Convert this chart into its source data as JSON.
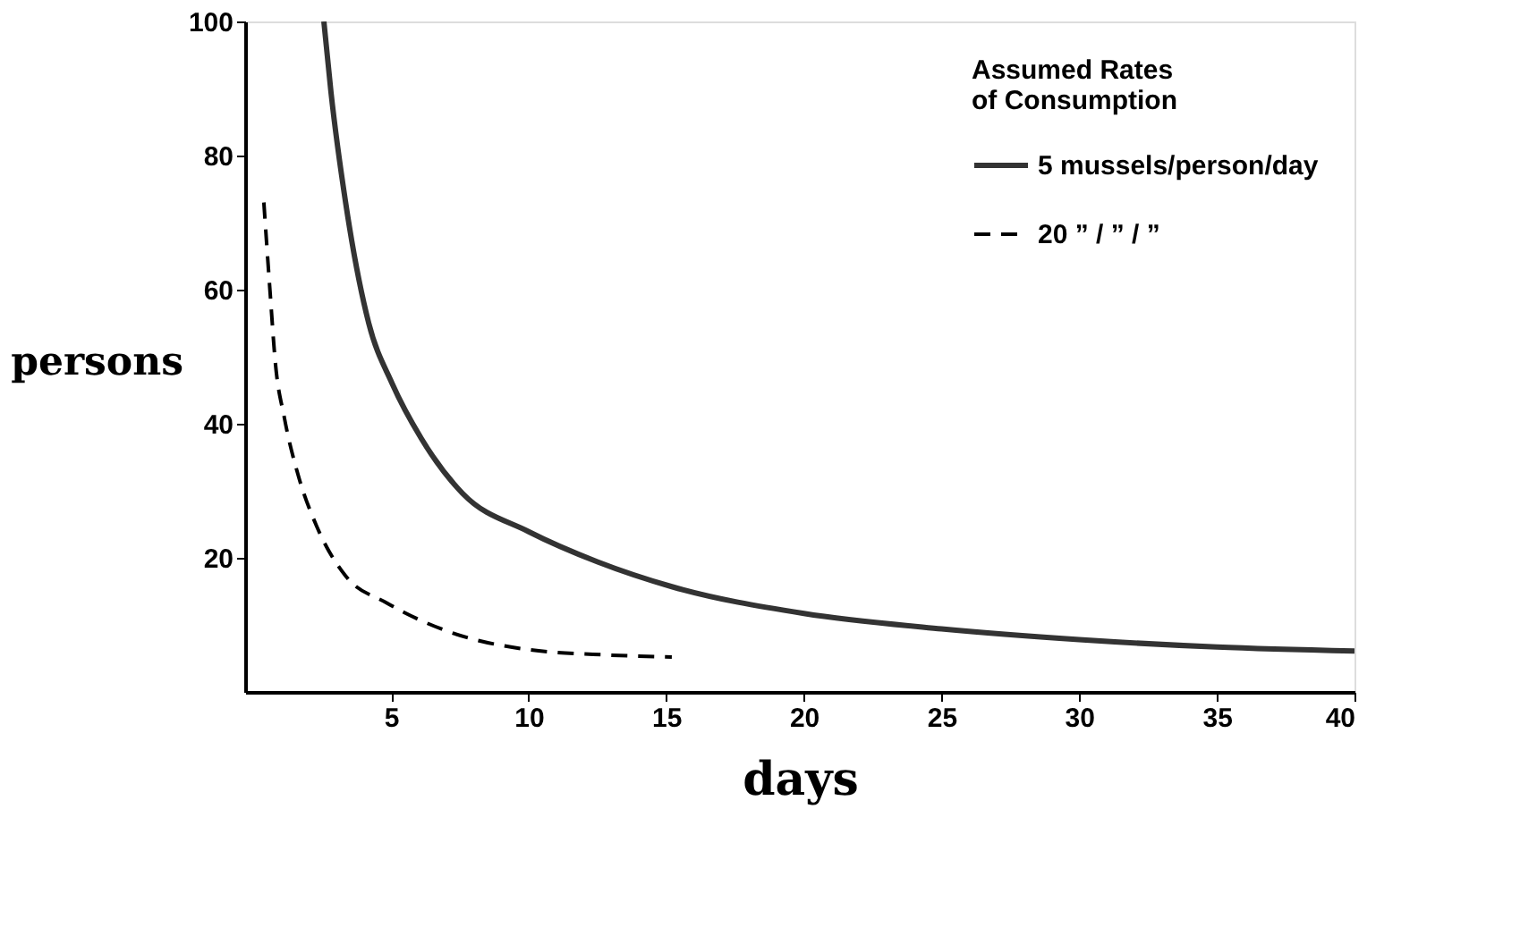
{
  "chart_data": {
    "type": "line",
    "xlabel": "days",
    "ylabel": "persons",
    "legend_title": "Assumed Rates\nof Consumption",
    "legend": "top right",
    "grid": false,
    "marker": "none",
    "xlim": [
      -0.3,
      40
    ],
    "xticks": [
      5,
      10,
      15,
      20,
      25,
      30,
      35,
      40
    ],
    "ylim": [
      0,
      100
    ],
    "yticks": [
      20,
      40,
      60,
      80,
      100
    ],
    "series": [
      {
        "name": "5 mussels/person/day",
        "color": "#333333",
        "line_style": "solid",
        "x": [
          2.56,
          2.82,
          3.35,
          4.19,
          5.04,
          6.1,
          7.6,
          10,
          12.5,
          15.2,
          20,
          25,
          30,
          35,
          40
        ],
        "values": [
          100,
          89.4,
          73,
          55,
          46,
          37.8,
          29.6,
          23.9,
          19.4,
          15.7,
          11.7,
          9.4,
          7.8,
          6.7,
          6.1
        ]
      },
      {
        "name": "20 ”  /  ”  / ”",
        "color": "#000000",
        "line_style": "dashed",
        "x": [
          0.38,
          0.6,
          0.8,
          1.12,
          1.65,
          2.3,
          3.35,
          4.83,
          6.95,
          10,
          12.9,
          15.2
        ],
        "values": [
          73,
          60,
          49,
          41,
          32,
          24.7,
          17.3,
          13.3,
          9.2,
          6.3,
          5.5,
          5.2
        ]
      }
    ]
  }
}
